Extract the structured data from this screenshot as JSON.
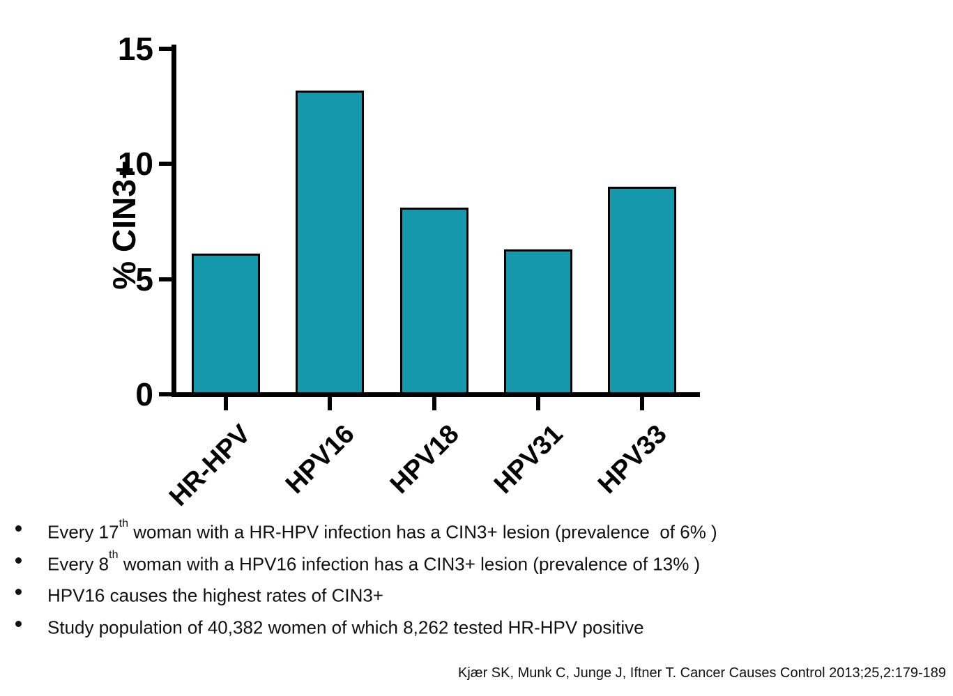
{
  "slide": {
    "background": "#ffffff"
  },
  "chart_data": {
    "type": "bar",
    "title": "",
    "categories": [
      "HR-HPV",
      "HPV16",
      "HPV18",
      "HPV31",
      "HPV33"
    ],
    "values": [
      6.1,
      13.2,
      8.1,
      6.3,
      9.0
    ],
    "xlabel": "",
    "ylabel": "% CIN3+",
    "ylim": [
      0,
      15
    ],
    "yticks": [
      0,
      5,
      10,
      15
    ],
    "grid": false,
    "legend": false,
    "bar_fill": "#1598AB",
    "bar_border": "#000000",
    "axis_color": "#000000"
  },
  "bullets": {
    "items": [
      {
        "pre": "Every 17",
        "sup": "th",
        "post": " woman with a HR-HPV infection has a CIN3+ lesion (prevalence  of 6% )"
      },
      {
        "pre": "Every 8",
        "sup": "th",
        "post": " woman with a HPV16 infection has a CIN3+ lesion (prevalence of 13% )"
      },
      {
        "pre": "HPV16 causes the highest rates of CIN3+",
        "sup": "",
        "post": ""
      },
      {
        "pre": "Study population of 40,382 women of which 8,262 tested HR-HPV positive",
        "sup": "",
        "post": ""
      }
    ]
  },
  "citation": {
    "text": "Kjær SK, Munk C, Junge J, Iftner T. Cancer Causes Control 2013;25,2:179-189"
  }
}
